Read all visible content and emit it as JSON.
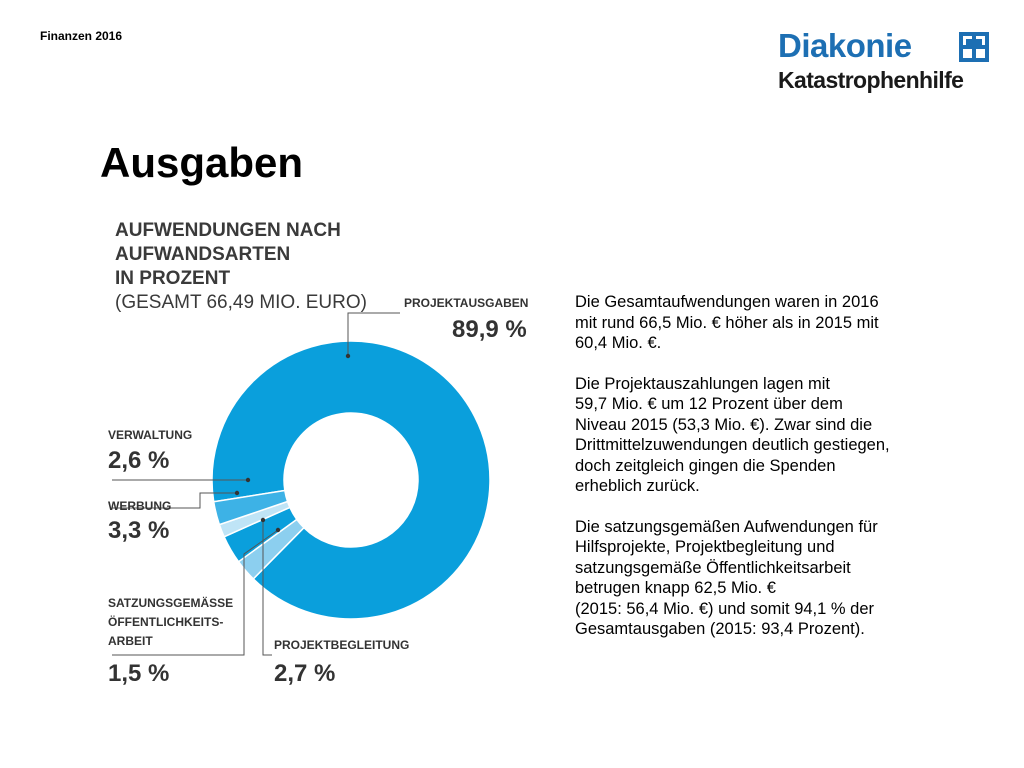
{
  "header": {
    "label": "Finanzen 2016"
  },
  "logo": {
    "line1": "Diakonie",
    "line2": "Katastrophenhilfe",
    "brand_color": "#1d6fb3"
  },
  "page_title": "Ausgaben",
  "chart_data": {
    "type": "pie",
    "donut": true,
    "title_line1": "AUFWENDUNGEN NACH AUFWANDSARTEN",
    "title_line2": "IN PROZENT",
    "subtitle": "(GESAMT 66,49 MIO. EURO)",
    "slices": [
      {
        "label": "PROJEKTAUSGABEN",
        "value": 89.9,
        "display": "89,9 %",
        "color": "#0a9fdc"
      },
      {
        "label": "VERWALTUNG",
        "value": 2.6,
        "display": "2,6 %",
        "color": "#8ccfef"
      },
      {
        "label": "WERBUNG",
        "value": 3.3,
        "display": "3,3 %",
        "color": "#0a9fdc"
      },
      {
        "label": "SATZUNGSGEMÄSSE ÖFFENTLICHKEITS- ARBEIT",
        "label_lines": [
          "SATZUNGSGEMÄSSE",
          "ÖFFENTLICHKEITS-",
          "ARBEIT"
        ],
        "value": 1.5,
        "display": "1,5 %",
        "color": "#bfe4f6"
      },
      {
        "label": "PROJEKTBEGLEITUNG",
        "value": 2.7,
        "display": "2,7 %",
        "color": "#3db2e6"
      }
    ]
  },
  "body_text": {
    "p1": "Die Gesamtaufwendungen waren in 2016\nmit rund 66,5 Mio. € höher als in 2015 mit\n60,4 Mio. €.",
    "p2": "Die Projektauszahlungen lagen mit\n59,7 Mio. €  um 12 Prozent über dem\nNiveau 2015  (53,3 Mio. €). Zwar sind die\nDrittmittelzuwendungen deutlich gestiegen,\ndoch zeitgleich gingen die Spenden\nerheblich zurück.",
    "p3": "Die satzungsgemäßen Aufwendungen für\nHilfsprojekte, Projektbegleitung und\nsatzungsgemäße Öffentlichkeitsarbeit\nbetrugen knapp 62,5 Mio. €\n(2015: 56,4 Mio. €) und somit 94,1 % der\nGesamtausgaben (2015: 93,4 Prozent)."
  }
}
